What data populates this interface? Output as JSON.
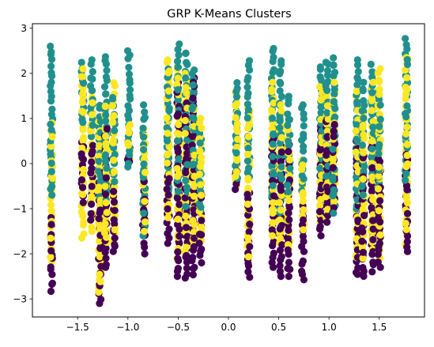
{
  "chart_data": {
    "type": "scatter",
    "title": "GRP K-Means Clusters",
    "xlabel": "",
    "ylabel": "",
    "xlim": [
      -1.95,
      1.95
    ],
    "ylim": [
      -3.4,
      3.1
    ],
    "grid": false,
    "legend": "none",
    "x_ticks": [
      -1.5,
      -1.0,
      -0.5,
      0.0,
      0.5,
      1.0,
      1.5
    ],
    "x_tick_labels": [
      "−1.5",
      "−1.0",
      "−0.5",
      "0.0",
      "0.5",
      "1.0",
      "1.5"
    ],
    "y_ticks": [
      -3,
      -2,
      -1,
      0,
      1,
      2,
      3
    ],
    "y_tick_labels": [
      "−3",
      "−2",
      "−1",
      "0",
      "1",
      "2",
      "3"
    ],
    "colors": {
      "purple": "#440154",
      "teal": "#21908d",
      "yellow": "#fde725"
    },
    "note_points": "Each column is a vertical strip of points at a fixed x; segments list y-ranges by cluster color (purple, teal, yellow).",
    "columns": [
      {
        "x": -1.76,
        "segments": [
          {
            "cluster": "purple",
            "y": [
              -2.85,
              -1.2
            ]
          },
          {
            "cluster": "yellow",
            "y": [
              -2.2,
              0.9
            ]
          },
          {
            "cluster": "teal",
            "y": [
              -0.7,
              2.6
            ]
          }
        ]
      },
      {
        "x": -1.45,
        "segments": [
          {
            "cluster": "yellow",
            "y": [
              -1.65,
              2.1
            ]
          },
          {
            "cluster": "purple",
            "y": [
              -0.9,
              0.5
            ]
          },
          {
            "cluster": "teal",
            "y": [
              0.9,
              2.25
            ]
          }
        ]
      },
      {
        "x": -1.36,
        "segments": [
          {
            "cluster": "purple",
            "y": [
              -1.3,
              0.4
            ]
          },
          {
            "cluster": "yellow",
            "y": [
              -1.5,
              1.6
            ]
          },
          {
            "cluster": "teal",
            "y": [
              0.6,
              2.3
            ]
          }
        ]
      },
      {
        "x": -1.28,
        "segments": [
          {
            "cluster": "purple",
            "y": [
              -3.1,
              -0.4
            ]
          },
          {
            "cluster": "yellow",
            "y": [
              -2.9,
              1.0
            ]
          },
          {
            "cluster": "teal",
            "y": [
              -1.2,
              1.3
            ]
          }
        ]
      },
      {
        "x": -1.22,
        "segments": [
          {
            "cluster": "purple",
            "y": [
              -2.3,
              0.8
            ]
          },
          {
            "cluster": "yellow",
            "y": [
              -1.8,
              1.3
            ]
          },
          {
            "cluster": "teal",
            "y": [
              -0.9,
              2.4
            ]
          }
        ]
      },
      {
        "x": -1.14,
        "segments": [
          {
            "cluster": "purple",
            "y": [
              -2.0,
              -0.5
            ]
          },
          {
            "cluster": "yellow",
            "y": [
              -1.7,
              1.8
            ]
          },
          {
            "cluster": "teal",
            "y": [
              -0.4,
              1.5
            ]
          }
        ]
      },
      {
        "x": -0.99,
        "segments": [
          {
            "cluster": "purple",
            "y": [
              0.0,
              0.2
            ]
          },
          {
            "cluster": "yellow",
            "y": [
              0.1,
              0.9
            ]
          },
          {
            "cluster": "teal",
            "y": [
              -0.1,
              2.5
            ]
          }
        ]
      },
      {
        "x": -0.84,
        "segments": [
          {
            "cluster": "purple",
            "y": [
              -2.0,
              -0.4
            ]
          },
          {
            "cluster": "yellow",
            "y": [
              -1.5,
              0.8
            ]
          },
          {
            "cluster": "teal",
            "y": [
              -1.6,
              1.3
            ]
          }
        ]
      },
      {
        "x": -0.6,
        "segments": [
          {
            "cluster": "purple",
            "y": [
              -1.8,
              0.0
            ]
          },
          {
            "cluster": "yellow",
            "y": [
              -1.2,
              2.3
            ]
          },
          {
            "cluster": "teal",
            "y": [
              -0.6,
              2.1
            ]
          }
        ]
      },
      {
        "x": -0.5,
        "segments": [
          {
            "cluster": "purple",
            "y": [
              -2.5,
              1.8
            ]
          },
          {
            "cluster": "yellow",
            "y": [
              -2.1,
              2.2
            ]
          },
          {
            "cluster": "teal",
            "y": [
              -0.8,
              2.65
            ]
          }
        ]
      },
      {
        "x": -0.42,
        "segments": [
          {
            "cluster": "purple",
            "y": [
              -2.55,
              1.4
            ]
          },
          {
            "cluster": "yellow",
            "y": [
              -2.0,
              2.0
            ]
          },
          {
            "cluster": "teal",
            "y": [
              -1.5,
              2.5
            ]
          }
        ]
      },
      {
        "x": -0.35,
        "segments": [
          {
            "cluster": "purple",
            "y": [
              -2.5,
              1.9
            ]
          },
          {
            "cluster": "yellow",
            "y": [
              -1.7,
              1.2
            ]
          },
          {
            "cluster": "teal",
            "y": [
              -0.3,
              2.1
            ]
          }
        ]
      },
      {
        "x": -0.28,
        "segments": [
          {
            "cluster": "purple",
            "y": [
              -2.2,
              -0.7
            ]
          },
          {
            "cluster": "yellow",
            "y": [
              -1.7,
              1.0
            ]
          },
          {
            "cluster": "teal",
            "y": [
              -1.1,
              0.8
            ]
          }
        ]
      },
      {
        "x": 0.08,
        "segments": [
          {
            "cluster": "purple",
            "y": [
              -0.6,
              0.0
            ]
          },
          {
            "cluster": "yellow",
            "y": [
              -0.5,
              1.6
            ]
          },
          {
            "cluster": "teal",
            "y": [
              -0.4,
              1.8
            ]
          }
        ]
      },
      {
        "x": 0.2,
        "segments": [
          {
            "cluster": "purple",
            "y": [
              -2.55,
              -0.6
            ]
          },
          {
            "cluster": "yellow",
            "y": [
              -2.1,
              1.3
            ]
          },
          {
            "cluster": "teal",
            "y": [
              -0.3,
              2.3
            ]
          }
        ]
      },
      {
        "x": 0.44,
        "segments": [
          {
            "cluster": "purple",
            "y": [
              -2.3,
              0.6
            ]
          },
          {
            "cluster": "yellow",
            "y": [
              -1.6,
              1.8
            ]
          },
          {
            "cluster": "teal",
            "y": [
              -0.8,
              2.55
            ]
          }
        ]
      },
      {
        "x": 0.52,
        "segments": [
          {
            "cluster": "purple",
            "y": [
              -2.5,
              0.4
            ]
          },
          {
            "cluster": "yellow",
            "y": [
              -1.8,
              1.3
            ]
          },
          {
            "cluster": "teal",
            "y": [
              -1.4,
              2.3
            ]
          }
        ]
      },
      {
        "x": 0.6,
        "segments": [
          {
            "cluster": "purple",
            "y": [
              -2.5,
              0.5
            ]
          },
          {
            "cluster": "yellow",
            "y": [
              -1.9,
              0.9
            ]
          },
          {
            "cluster": "teal",
            "y": [
              -0.7,
              1.5
            ]
          }
        ]
      },
      {
        "x": 0.74,
        "segments": [
          {
            "cluster": "purple",
            "y": [
              -2.6,
              -0.9
            ]
          },
          {
            "cluster": "yellow",
            "y": [
              -1.5,
              0.1
            ]
          },
          {
            "cluster": "teal",
            "y": [
              -0.6,
              1.3
            ]
          }
        ]
      },
      {
        "x": 0.92,
        "segments": [
          {
            "cluster": "purple",
            "y": [
              -1.6,
              0.9
            ]
          },
          {
            "cluster": "yellow",
            "y": [
              -1.3,
              1.7
            ]
          },
          {
            "cluster": "teal",
            "y": [
              -0.8,
              2.2
            ]
          }
        ]
      },
      {
        "x": 0.98,
        "segments": [
          {
            "cluster": "purple",
            "y": [
              -1.3,
              1.0
            ]
          },
          {
            "cluster": "yellow",
            "y": [
              -1.2,
              1.6
            ]
          },
          {
            "cluster": "teal",
            "y": [
              -0.5,
              2.3
            ]
          }
        ]
      },
      {
        "x": 1.05,
        "segments": [
          {
            "cluster": "purple",
            "y": [
              -1.1,
              0.9
            ]
          },
          {
            "cluster": "yellow",
            "y": [
              -0.9,
              1.8
            ]
          },
          {
            "cluster": "teal",
            "y": [
              -1.1,
              2.35
            ]
          }
        ]
      },
      {
        "x": 1.28,
        "segments": [
          {
            "cluster": "purple",
            "y": [
              -2.5,
              0.5
            ]
          },
          {
            "cluster": "yellow",
            "y": [
              -2.1,
              1.6
            ]
          },
          {
            "cluster": "teal",
            "y": [
              -1.0,
              2.3
            ]
          }
        ]
      },
      {
        "x": 1.34,
        "segments": [
          {
            "cluster": "purple",
            "y": [
              -2.5,
              0.2
            ]
          },
          {
            "cluster": "yellow",
            "y": [
              -2.1,
              1.3
            ]
          },
          {
            "cluster": "teal",
            "y": [
              -0.9,
              1.8
            ]
          }
        ]
      },
      {
        "x": 1.43,
        "segments": [
          {
            "cluster": "purple",
            "y": [
              -2.4,
              0.4
            ]
          },
          {
            "cluster": "yellow",
            "y": [
              -1.9,
              1.8
            ]
          },
          {
            "cluster": "teal",
            "y": [
              -0.3,
              2.2
            ]
          }
        ]
      },
      {
        "x": 1.5,
        "segments": [
          {
            "cluster": "purple",
            "y": [
              -2.3,
              0.1
            ]
          },
          {
            "cluster": "yellow",
            "y": [
              -2.1,
              2.1
            ]
          },
          {
            "cluster": "teal",
            "y": [
              -0.6,
              1.6
            ]
          }
        ]
      },
      {
        "x": 1.77,
        "segments": [
          {
            "cluster": "purple",
            "y": [
              -1.95,
              0.2
            ]
          },
          {
            "cluster": "yellow",
            "y": [
              -1.8,
              2.4
            ]
          },
          {
            "cluster": "teal",
            "y": [
              -0.6,
              2.8
            ]
          }
        ]
      }
    ]
  }
}
